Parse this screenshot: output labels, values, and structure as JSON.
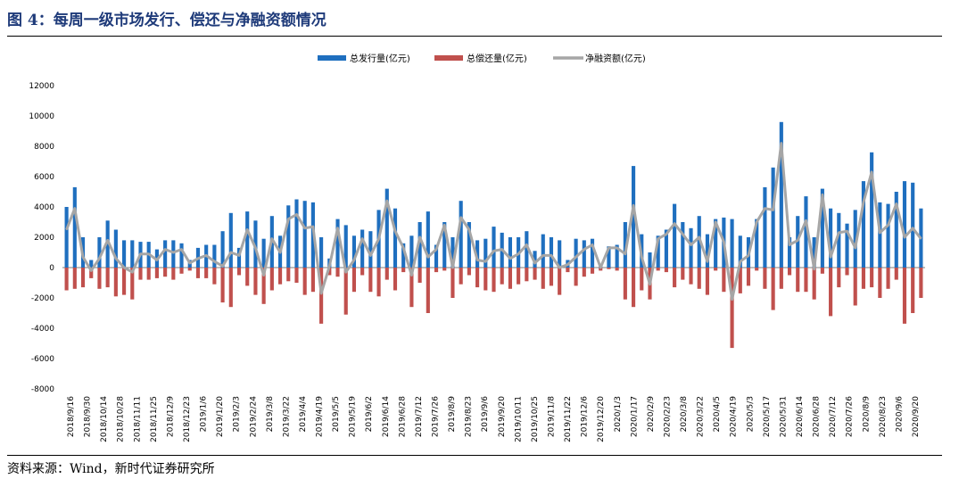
{
  "header": {
    "title": "图 4：每周一级市场发行、偿还与净融资额情况"
  },
  "footer": {
    "source": "资料来源：Wind，新时代证券研究所"
  },
  "chart_data": {
    "type": "bar",
    "title": "",
    "xlabel": "",
    "ylabel": "",
    "ylim": [
      -8000,
      12000
    ],
    "yticks": [
      -8000,
      -6000,
      -4000,
      -2000,
      0,
      2000,
      4000,
      6000,
      8000,
      10000,
      12000
    ],
    "legend_position": "top-center",
    "colors": {
      "issuance": "#1f6fbf",
      "repayment": "#c0504d",
      "net": "#a6a6a6"
    },
    "x_tick_labels": [
      "2018/9/16",
      "2018/9/30",
      "2018/10/14",
      "2018/10/28",
      "2018/11/11",
      "2018/11/25",
      "2018/12/9",
      "2018/12/23",
      "2019/1/6",
      "2019/1/20",
      "2019/2/3",
      "2019/2/24",
      "2019/3/8",
      "2019/3/22",
      "2019/4/4",
      "2019/4/19",
      "2019/5/5",
      "2019/5/19",
      "2019/6/2",
      "2019/6/14",
      "2019/6/28",
      "2019/7/12",
      "2019/7/26",
      "2019/8/9",
      "2019/8/23",
      "2019/9/6",
      "2019/9/20",
      "2019/10/11",
      "2019/10/25",
      "2019/11/8",
      "2019/11/22",
      "2019/12/6",
      "2019/12/20",
      "2020/1/3",
      "2020/1/17",
      "2020/2/9",
      "2020/2/23",
      "2020/3/8",
      "2020/3/22",
      "2020/4/5",
      "2020/4/19",
      "2020/5/3",
      "2020/5/17",
      "2020/5/31",
      "2020/6/14",
      "2020/6/28",
      "2020/7/12",
      "2020/7/26",
      "2020/8/9",
      "2020/8/23",
      "2020/9/6",
      "2020/9/20"
    ],
    "series": [
      {
        "name": "总发行量(亿元)",
        "type": "bar",
        "values": [
          4000,
          5300,
          2000,
          500,
          2000,
          3100,
          2500,
          1800,
          1800,
          1700,
          1700,
          1200,
          1800,
          1800,
          1600,
          500,
          1300,
          1500,
          1500,
          2400,
          3600,
          1300,
          3700,
          3100,
          1900,
          3400,
          2100,
          4100,
          4500,
          4400,
          4300,
          2000,
          600,
          3200,
          2800,
          2100,
          2500,
          2400,
          3800,
          5200,
          3900,
          1600,
          2100,
          3000,
          3700,
          1500,
          3000,
          2000,
          4400,
          3000,
          1800,
          1900,
          2700,
          2300,
          2000,
          2000,
          2400,
          1100,
          2200,
          2000,
          1800,
          500,
          1900,
          1800,
          1900,
          200,
          1400,
          1500,
          3000,
          6700,
          2200,
          1000,
          2100,
          2500,
          4200,
          3000,
          2600,
          3400,
          2200,
          3200,
          3300,
          3200,
          2100,
          2000,
          3200,
          5300,
          6600,
          9600,
          2000,
          3400,
          4700,
          2000,
          5200,
          3900,
          3600,
          2900,
          3800,
          5700,
          7600,
          4300,
          4200,
          5000,
          5700,
          5600,
          3900
        ]
      },
      {
        "name": "总偿还量(亿元)",
        "type": "bar",
        "values": [
          -1500,
          -1400,
          -1300,
          -700,
          -1400,
          -1300,
          -1900,
          -1800,
          -2100,
          -800,
          -800,
          -700,
          -600,
          -800,
          -400,
          -200,
          -700,
          -700,
          -1100,
          -2300,
          -2600,
          -500,
          -1200,
          -1800,
          -2400,
          -1500,
          -1100,
          -900,
          -1000,
          -1800,
          -1600,
          -3700,
          -500,
          -600,
          -3100,
          -1600,
          -500,
          -1600,
          -1900,
          -800,
          -1500,
          -300,
          -2600,
          -1000,
          -3000,
          -300,
          -200,
          -2000,
          -1100,
          -500,
          -1300,
          -1500,
          -1600,
          -1100,
          -1400,
          -1100,
          -900,
          -800,
          -1400,
          -1200,
          -1800,
          -300,
          -1200,
          -600,
          -400,
          -200,
          -100,
          -200,
          -2100,
          -2600,
          -1500,
          -2100,
          -200,
          -300,
          -1300,
          -800,
          -1100,
          -1400,
          -1800,
          -200,
          -1600,
          -5300,
          -1700,
          -1200,
          -200,
          -1400,
          -2800,
          -1400,
          -500,
          -1600,
          -1600,
          -2100,
          -400,
          -3200,
          -1300,
          -500,
          -2500,
          -1400,
          -1300,
          -2000,
          -1400,
          -800,
          -3700,
          -3000,
          -2000
        ]
      },
      {
        "name": "净融资额(亿元)",
        "type": "line",
        "values": [
          2500,
          3900,
          700,
          -200,
          600,
          1800,
          600,
          0,
          -300,
          900,
          900,
          500,
          1200,
          1000,
          1200,
          300,
          600,
          800,
          400,
          100,
          1000,
          800,
          2500,
          1300,
          -500,
          1900,
          1000,
          3200,
          3500,
          2600,
          2700,
          -1700,
          100,
          2600,
          -300,
          500,
          1900,
          800,
          1900,
          4400,
          2400,
          1300,
          -500,
          2000,
          700,
          1200,
          2800,
          0,
          3300,
          2500,
          500,
          400,
          1100,
          1200,
          600,
          900,
          1500,
          300,
          800,
          800,
          0,
          200,
          700,
          1200,
          1500,
          0,
          1300,
          1300,
          900,
          4100,
          700,
          -1100,
          1900,
          2200,
          2900,
          2200,
          1500,
          2000,
          400,
          3000,
          1700,
          -2100,
          400,
          800,
          3000,
          3900,
          3800,
          8200,
          1500,
          1800,
          3100,
          -100,
          4800,
          700,
          2300,
          2400,
          1300,
          4300,
          6300,
          2300,
          2800,
          4200,
          2000,
          2600,
          1900
        ]
      }
    ]
  }
}
